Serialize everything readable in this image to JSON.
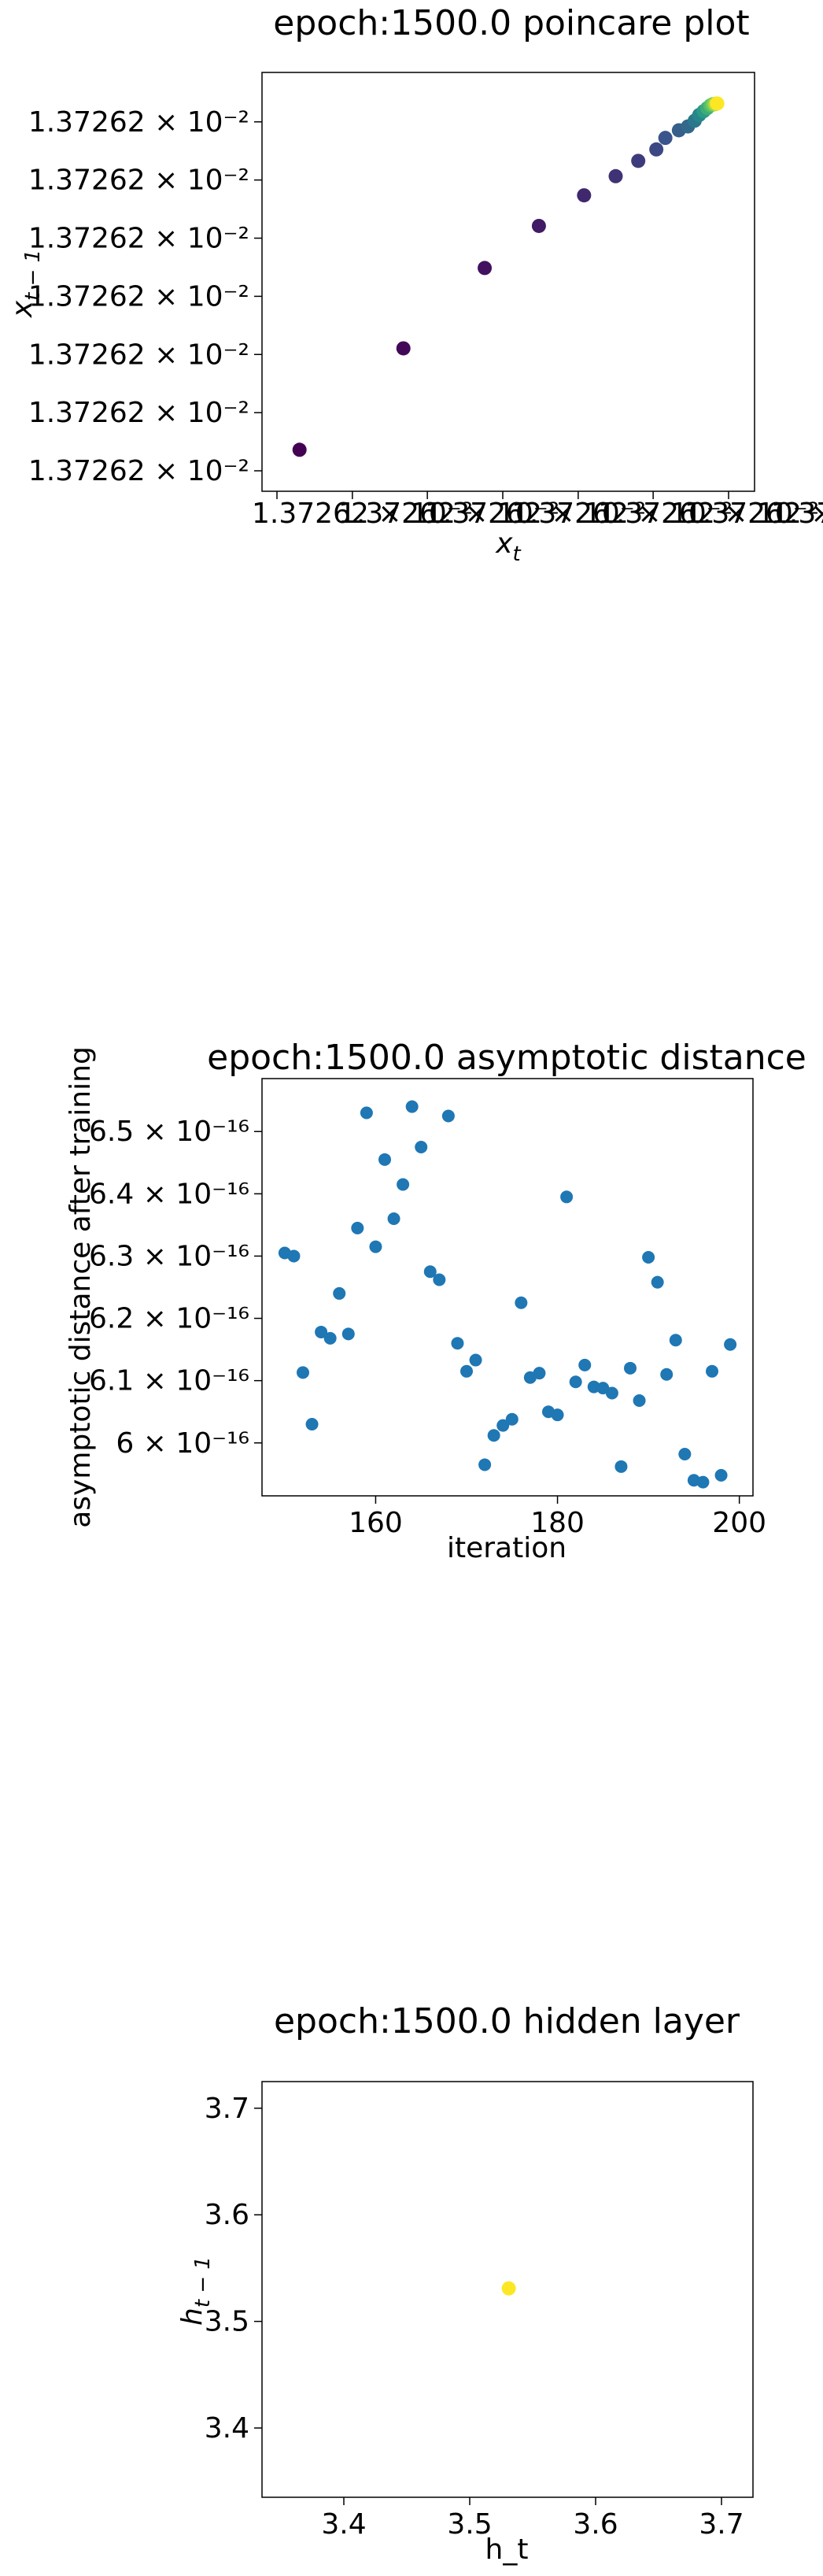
{
  "chart_data": [
    {
      "type": "scatter",
      "title": "epoch:1500.0 poincare plot",
      "xlabel": "x_t",
      "ylabel": "x_{t-1}",
      "xtick_labels": [
        "1.37262 × 10⁻²",
        "1.37262 × 10⁻²",
        "1.37262 × 10⁻²",
        "1.37262 × 10⁻²",
        "1.37262 × 10⁻²",
        "1.37262 × 10⁻²",
        "1.37262 × 10⁻²"
      ],
      "ytick_labels": [
        "1.37262 × 10⁻²",
        "1.37262 × 10⁻²",
        "1.37262 × 10⁻²",
        "1.37262 × 10⁻²",
        "1.37262 × 10⁻²",
        "1.37262 × 10⁻²",
        "1.37262 × 10⁻²"
      ],
      "xtick_positions": [
        0.0,
        0.167,
        0.333,
        0.5,
        0.667,
        0.833,
        1.0
      ],
      "ytick_positions": [
        0.0,
        0.152,
        0.304,
        0.456,
        0.608,
        0.76,
        0.912
      ],
      "xlim": [
        0,
        1
      ],
      "ylim": [
        0,
        1
      ],
      "colormap": "viridis",
      "points": [
        {
          "x": 0.05,
          "y": 0.055,
          "c": 0.0
        },
        {
          "x": 0.28,
          "y": 0.32,
          "c": 0.02
        },
        {
          "x": 0.46,
          "y": 0.53,
          "c": 0.05
        },
        {
          "x": 0.58,
          "y": 0.64,
          "c": 0.08
        },
        {
          "x": 0.68,
          "y": 0.72,
          "c": 0.12
        },
        {
          "x": 0.75,
          "y": 0.77,
          "c": 0.15
        },
        {
          "x": 0.8,
          "y": 0.81,
          "c": 0.18
        },
        {
          "x": 0.84,
          "y": 0.84,
          "c": 0.22
        },
        {
          "x": 0.86,
          "y": 0.87,
          "c": 0.26
        },
        {
          "x": 0.89,
          "y": 0.89,
          "c": 0.3
        },
        {
          "x": 0.91,
          "y": 0.9,
          "c": 0.34
        },
        {
          "x": 0.925,
          "y": 0.915,
          "c": 0.4
        },
        {
          "x": 0.935,
          "y": 0.93,
          "c": 0.46
        },
        {
          "x": 0.945,
          "y": 0.94,
          "c": 0.54
        },
        {
          "x": 0.953,
          "y": 0.948,
          "c": 0.62
        },
        {
          "x": 0.96,
          "y": 0.955,
          "c": 0.7
        },
        {
          "x": 0.965,
          "y": 0.958,
          "c": 0.78
        },
        {
          "x": 0.97,
          "y": 0.958,
          "c": 0.86
        },
        {
          "x": 0.973,
          "y": 0.96,
          "c": 0.93
        },
        {
          "x": 0.975,
          "y": 0.96,
          "c": 1.0
        }
      ]
    },
    {
      "type": "scatter",
      "title": "epoch:1500.0 asymptotic distance",
      "xlabel": "iteration",
      "ylabel": "asymptotic distance after training",
      "xlim": [
        147.5,
        201.5
      ],
      "ylim": [
        5.915,
        6.585
      ],
      "xticks": [
        160,
        180,
        200
      ],
      "xtick_labels": [
        "160",
        "180",
        "200"
      ],
      "yticks": [
        6.0,
        6.1,
        6.2,
        6.3,
        6.4,
        6.5
      ],
      "ytick_labels": [
        "6 × 10⁻¹⁶",
        "6.1 × 10⁻¹⁶",
        "6.2 × 10⁻¹⁶",
        "6.3 × 10⁻¹⁶",
        "6.4 × 10⁻¹⁶",
        "6.5 × 10⁻¹⁶"
      ],
      "y_unit": "1e-16",
      "color": "#1f77b4",
      "x": [
        150,
        151,
        152,
        153,
        154,
        155,
        156,
        157,
        158,
        159,
        160,
        161,
        162,
        163,
        164,
        165,
        166,
        167,
        168,
        169,
        170,
        171,
        172,
        173,
        174,
        175,
        176,
        177,
        178,
        179,
        180,
        181,
        182,
        183,
        184,
        185,
        186,
        187,
        188,
        189,
        190,
        191,
        192,
        193,
        194,
        195,
        196,
        197,
        198,
        199
      ],
      "y": [
        6.305,
        6.3,
        6.113,
        6.03,
        6.178,
        6.168,
        6.24,
        6.175,
        6.345,
        6.53,
        6.315,
        6.455,
        6.36,
        6.415,
        6.54,
        6.475,
        6.275,
        6.262,
        6.525,
        6.16,
        6.115,
        6.133,
        5.965,
        6.012,
        6.028,
        6.038,
        6.225,
        6.105,
        6.112,
        6.05,
        6.045,
        6.395,
        6.098,
        6.125,
        6.09,
        6.088,
        6.08,
        5.962,
        6.12,
        6.068,
        6.298,
        6.258,
        6.11,
        6.165,
        5.982,
        5.94,
        5.937,
        6.115,
        5.948,
        6.158
      ]
    },
    {
      "type": "scatter",
      "title": "epoch:1500.0 hidden layer",
      "xlabel": "h_t",
      "ylabel": "h_{t-1}",
      "xlim": [
        3.335,
        3.725
      ],
      "ylim": [
        3.335,
        3.725
      ],
      "xticks": [
        3.4,
        3.5,
        3.6,
        3.7
      ],
      "yticks": [
        3.4,
        3.5,
        3.6,
        3.7
      ],
      "xtick_labels": [
        "3.4",
        "3.5",
        "3.6",
        "3.7"
      ],
      "ytick_labels": [
        "3.4",
        "3.5",
        "3.6",
        "3.7"
      ],
      "color": "#fde725",
      "points": [
        {
          "x": 3.531,
          "y": 3.531
        }
      ]
    }
  ]
}
